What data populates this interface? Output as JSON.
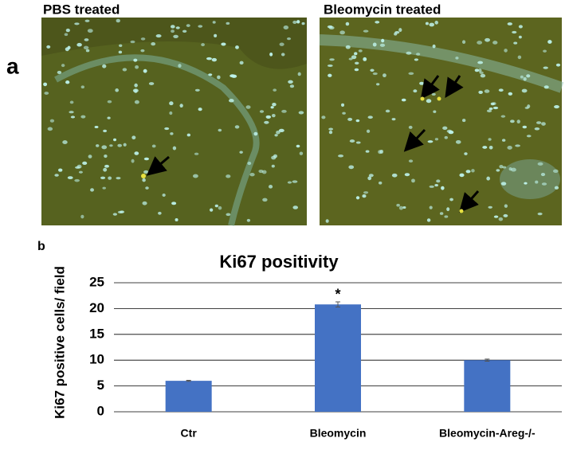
{
  "panel_labels": [
    "a",
    "b"
  ],
  "images": [
    {
      "title": "PBS treated"
    },
    {
      "title": "Bleomycin treated"
    }
  ],
  "chart_data": {
    "type": "bar",
    "title": "Ki67 positivity",
    "y_label": "Ki67 positive cells/ field",
    "categories": [
      "Ctr",
      "Bleomycin",
      "Bleomycin-Areg-/-"
    ],
    "values": [
      6,
      20.8,
      10
    ],
    "errors": [
      0.1,
      0.5,
      0.2
    ],
    "color": "#4472c4",
    "annotations": [
      {
        "text": "*",
        "category": "Bleomycin"
      }
    ],
    "ylim": [
      0,
      25
    ],
    "yticks": [
      0,
      5,
      10,
      15,
      20,
      25
    ],
    "grid": true
  }
}
